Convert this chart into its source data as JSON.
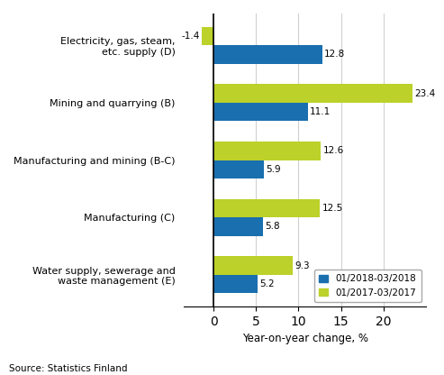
{
  "categories": [
    "Electricity, gas, steam,\netc. supply (D)",
    "Mining and quarrying (B)",
    "Manufacturing and mining (B-C)",
    "Manufacturing (C)",
    "Water supply, sewerage and\nwaste management (E)"
  ],
  "blue_vals": [
    12.8,
    11.1,
    5.9,
    5.8,
    5.2
  ],
  "green_vals": [
    -1.4,
    23.4,
    12.6,
    12.5,
    9.3
  ],
  "blue_color": "#1a6faf",
  "green_color": "#bcd12a",
  "xlabel": "Year-on-year change, %",
  "xlim": [
    -3.5,
    25
  ],
  "xticks": [
    0,
    5,
    10,
    15,
    20
  ],
  "source": "Source: Statistics Finland",
  "bar_height": 0.32,
  "legend_labels": [
    "01/2018-03/2018",
    "01/2017-03/2017"
  ],
  "background_color": "#ffffff"
}
